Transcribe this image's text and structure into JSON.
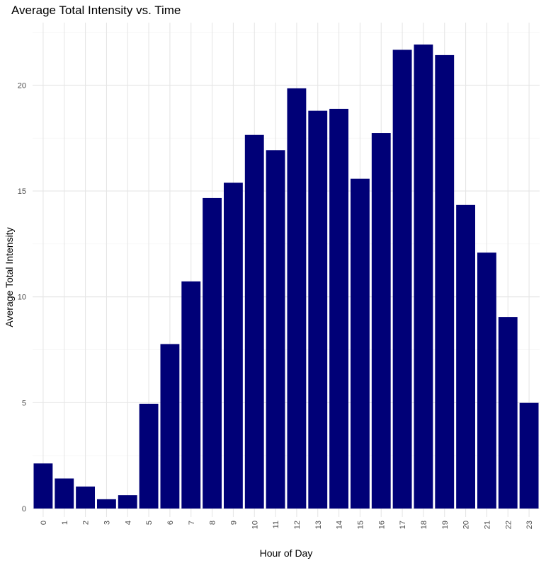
{
  "chart_data": {
    "type": "bar",
    "title": "Average Total Intensity vs. Time",
    "xlabel": "Hour of Day",
    "ylabel": "Average Total Intensity",
    "categories": [
      "0",
      "1",
      "2",
      "3",
      "4",
      "5",
      "6",
      "7",
      "8",
      "9",
      "10",
      "11",
      "12",
      "13",
      "14",
      "15",
      "16",
      "17",
      "18",
      "19",
      "20",
      "21",
      "22",
      "23"
    ],
    "values": [
      2.13,
      1.42,
      1.04,
      0.44,
      0.63,
      4.95,
      7.77,
      10.73,
      14.67,
      15.39,
      17.65,
      16.93,
      19.85,
      18.79,
      18.88,
      15.58,
      17.74,
      21.67,
      21.92,
      21.42,
      14.34,
      12.09,
      9.05,
      4.99
    ],
    "yticks": [
      "0",
      "5",
      "10",
      "15",
      "20"
    ],
    "ylim": [
      0,
      22.9
    ],
    "grid": true,
    "colors": {
      "bar": "#000077"
    }
  }
}
